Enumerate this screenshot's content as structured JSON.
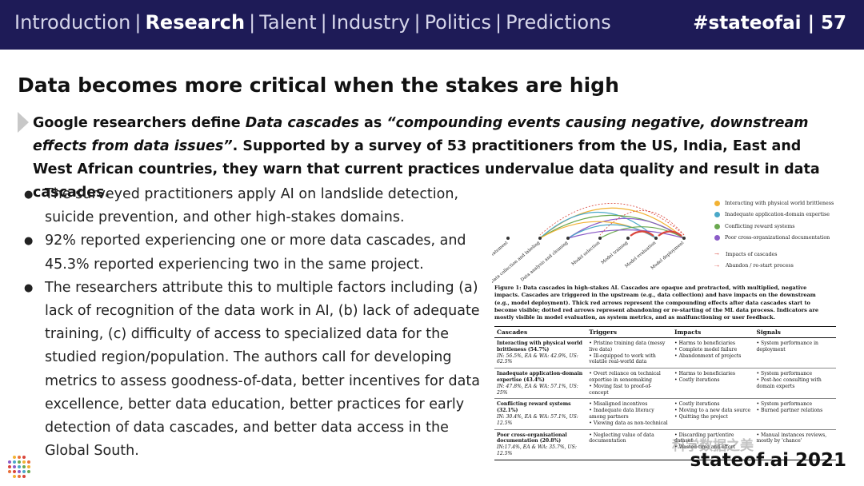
{
  "header": {
    "nav": [
      {
        "label": "Introduction",
        "active": false
      },
      {
        "label": "Research",
        "active": true
      },
      {
        "label": "Talent",
        "active": false
      },
      {
        "label": "Industry",
        "active": false
      },
      {
        "label": "Politics",
        "active": false
      },
      {
        "label": "Predictions",
        "active": false
      }
    ],
    "separator": "|",
    "hashtag_page": "#stateofai | 57"
  },
  "slide": {
    "title": "Data becomes more critical when the stakes are high",
    "lead": {
      "part1": "Google researchers define ",
      "term": "Data cascades",
      "part2": " as ",
      "quote": "“compounding events causing negative, downstream effects from data issues”",
      "part3": ". Supported by a survey of 53 practitioners from the US, India, East and West African countries, they warn that current practices undervalue data quality and result in data cascades."
    },
    "bullets": [
      "The surveyed practitioners apply AI on landslide detection, suicide prevention, and other high-stakes domains.",
      "92% reported experiencing one or more data cascades, and 45.3% reported experiencing two in the same project.",
      "The researchers attribute this to multiple factors including (a) lack of recognition of the data work in AI, (b) lack of adequate training, (c) difficulty of access to specialized data for the studied region/population. The authors call for developing metrics to assess goodness-of-data, better incentives for data excellence, better data education, better practices for early detection of data cascades, and better data access in the Global South."
    ]
  },
  "figure": {
    "stages": [
      "Problem Statement",
      "Data collection and labeling",
      "Data analysis and cleaning",
      "Model selection",
      "Model training",
      "Model evaluation",
      "Model deployment"
    ],
    "legend": [
      {
        "label": "Interacting with physical world brittleness",
        "color": "#f2b233"
      },
      {
        "label": "Inadequate application-domain expertise",
        "color": "#4aa8c8"
      },
      {
        "label": "Conflicting reward systems",
        "color": "#6aa84f"
      },
      {
        "label": "Poor cross-organizational documentation",
        "color": "#8b5cc7"
      }
    ],
    "legend_arrows": [
      {
        "label": "Impacts of cascades",
        "symbol": "→"
      },
      {
        "label": "Abandon / re-start process",
        "symbol": "⇢"
      }
    ],
    "caption_bold": "Figure 1: Data cascades in high-stakes AI. Cascades are opaque and protracted, with multiplied, negative impacts. Cascades are triggered in the upstream (e.g., data collection) and have impacts on the downstream (e.g., model deployment). Thick red arrows represent the compounding effects after data cascades start to become visible; dotted red arrows represent abandoning or re-starting of the ML data process. Indicators are mostly visible in model evaluation, as system metrics, and as malfunctioning or user feedback.",
    "table": {
      "headers": [
        "Cascades",
        "Triggers",
        "Impacts",
        "Signals"
      ],
      "rows": [
        {
          "name": "Interacting with physical world brittleness (54.7%)",
          "stat": "IN: 56.5%, EA & WA: 42.9%, US: 62.5%",
          "triggers": [
            "• Pristine training data (messy live data)",
            "• Ill-equipped to work with volatile real-world data"
          ],
          "impacts": [
            "• Harms to beneficiaries",
            "• Complete model failure",
            "• Abandonment of projects"
          ],
          "signals": [
            "• System performance in deployment"
          ]
        },
        {
          "name": "Inadequate application-domain expertise (43.4%)",
          "stat": "IN: 47.8%, EA & WA: 57.1%, US: 25%",
          "triggers": [
            "• Overt reliance on technical expertise in sensemaking",
            "• Moving fast to proof-of-concept"
          ],
          "impacts": [
            "• Harms to beneficiaries",
            "• Costly iterations"
          ],
          "signals": [
            "• System performance",
            "• Post-hoc consulting with domain experts"
          ]
        },
        {
          "name": "Conflicting reward systems (32.1%)",
          "stat": "IN: 30.4%, EA & WA: 57.1%, US: 12.5%",
          "triggers": [
            "• Misaligned incentives",
            "• Inadequate data literacy among partners",
            "• Viewing data as non-technical"
          ],
          "impacts": [
            "• Costly iterations",
            "• Moving to a new data source",
            "• Quitting the project"
          ],
          "signals": [
            "• System performance",
            "• Burned partner relations"
          ]
        },
        {
          "name": "Poor cross-organisational documentation (20.8%)",
          "stat": "IN:17.4%, EA & WA: 35.7%, US: 12.5%",
          "triggers": [
            "• Neglecting value of data documentation"
          ],
          "impacts": [
            "• Discarding part/entire dataset",
            "• Wasted time and effort"
          ],
          "signals": [
            "• Manual instances reviews, mostly by 'chance'"
          ]
        }
      ]
    }
  },
  "footer": {
    "brand": "stateof.ai 2021",
    "watermark": "科学数据之美"
  },
  "colors": {
    "header_bg": "#1e1b57",
    "impact_arrow": "#d9443a"
  }
}
